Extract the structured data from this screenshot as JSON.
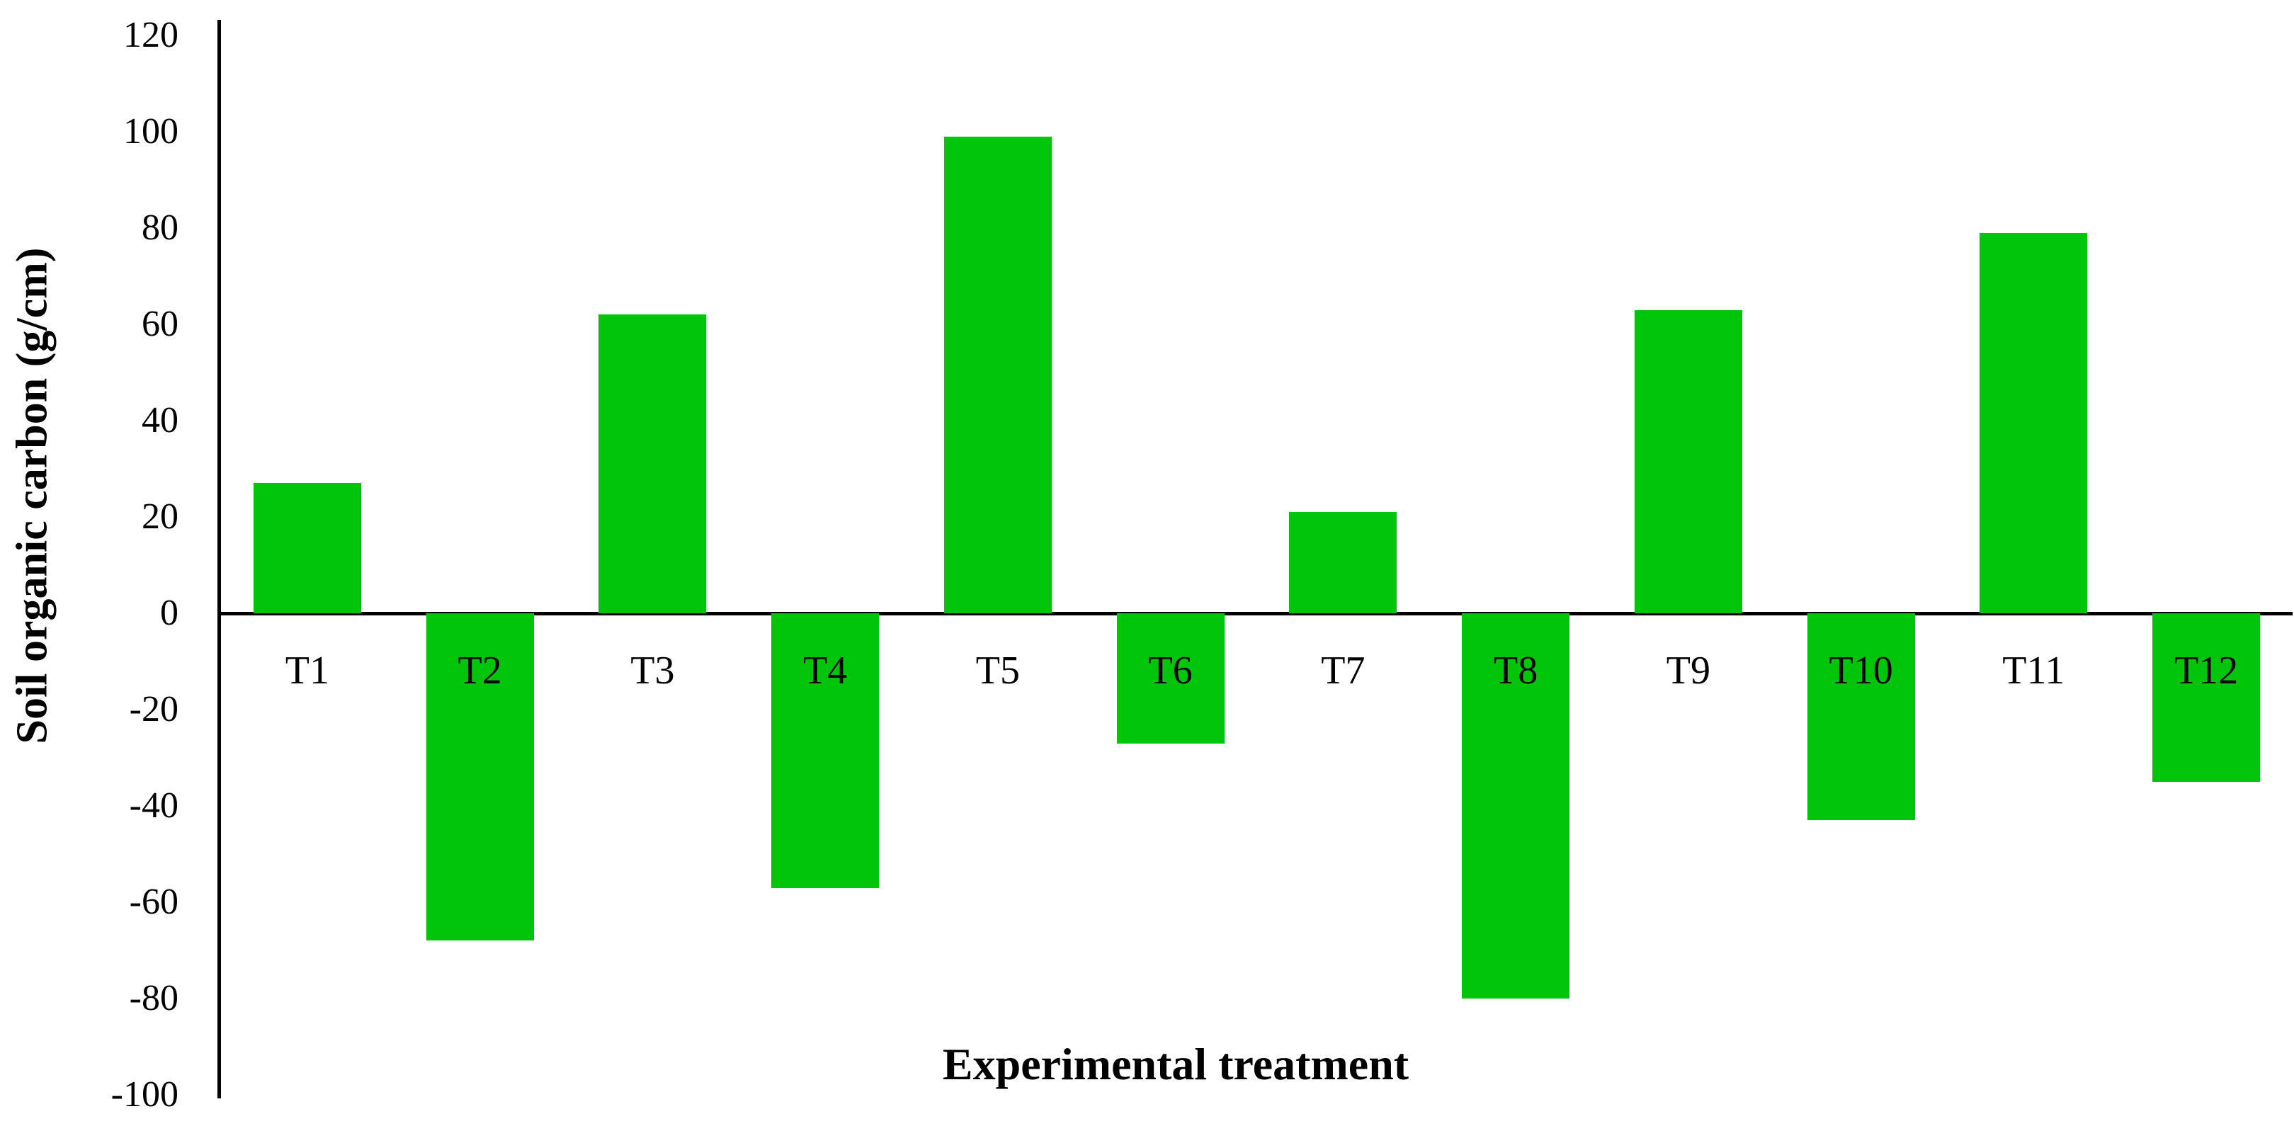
{
  "chart_data": {
    "type": "bar",
    "title": "",
    "xlabel": "Experimental treatment",
    "ylabel": "Soil organic carbon (g/cm)",
    "categories": [
      "T1",
      "T2",
      "T3",
      "T4",
      "T5",
      "T6",
      "T7",
      "T8",
      "T9",
      "T10",
      "T11",
      "T12"
    ],
    "values": [
      27,
      -68,
      62,
      -57,
      99,
      -27,
      21,
      -80,
      63,
      -43,
      79,
      -35
    ],
    "ylim": [
      -100,
      120
    ],
    "ytick_step": 20,
    "yticks": [
      120,
      100,
      80,
      60,
      40,
      20,
      0,
      -20,
      -40,
      -60,
      -80,
      -100
    ],
    "grid": false,
    "legend": false,
    "bar_color": "#00c50a",
    "axis_color": "#000000",
    "background_color": "#ffffff"
  }
}
